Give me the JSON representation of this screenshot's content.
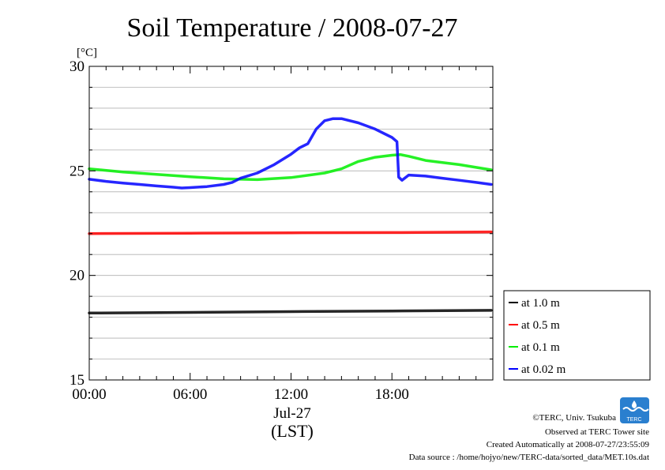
{
  "chart_data": {
    "type": "line",
    "title": "Soil Temperature / 2008-07-27",
    "yunit": "[°C]",
    "xlim": [
      0,
      24
    ],
    "ylim": [
      15,
      30
    ],
    "yticks": [
      15,
      20,
      25,
      30
    ],
    "xticks": [
      {
        "value": 0,
        "label": "00:00"
      },
      {
        "value": 6,
        "label": "06:00"
      },
      {
        "value": 12,
        "label": "12:00"
      },
      {
        "value": 18,
        "label": "18:00"
      }
    ],
    "date_label": "Jul-27",
    "xlabel": "(LST)",
    "grid": "horizontal",
    "legend_position": "right",
    "series": [
      {
        "name": "at 1.0 m",
        "color": "#000000",
        "x": [
          0,
          6,
          12,
          18,
          23.9
        ],
        "y": [
          18.2,
          18.23,
          18.27,
          18.3,
          18.33
        ]
      },
      {
        "name": "at 0.5 m",
        "color": "#ff0000",
        "x": [
          0,
          6,
          12,
          18,
          23.9
        ],
        "y": [
          22.0,
          22.02,
          22.04,
          22.05,
          22.08
        ]
      },
      {
        "name": "at 0.1 m",
        "color": "#00ee00",
        "x": [
          0,
          2,
          4,
          6,
          8,
          10,
          12,
          14,
          15,
          16,
          17,
          18,
          18.5,
          19,
          20,
          22,
          23.9
        ],
        "y": [
          25.1,
          24.95,
          24.83,
          24.72,
          24.62,
          24.58,
          24.68,
          24.9,
          25.1,
          25.45,
          25.65,
          25.75,
          25.78,
          25.7,
          25.5,
          25.3,
          25.05
        ]
      },
      {
        "name": "at 0.02 m",
        "color": "#0000ff",
        "x": [
          0,
          1,
          2,
          3,
          4,
          5,
          5.5,
          6,
          7,
          8,
          8.5,
          9,
          10,
          11,
          12,
          12.5,
          13,
          13.5,
          14,
          14.5,
          15,
          16,
          17,
          18,
          18.3,
          18.4,
          18.6,
          19,
          20,
          21,
          22,
          23,
          23.9
        ],
        "y": [
          24.6,
          24.5,
          24.42,
          24.35,
          24.28,
          24.22,
          24.18,
          24.2,
          24.25,
          24.35,
          24.45,
          24.65,
          24.9,
          25.3,
          25.8,
          26.1,
          26.3,
          27.0,
          27.4,
          27.5,
          27.5,
          27.3,
          27.0,
          26.6,
          26.4,
          24.7,
          24.55,
          24.8,
          24.75,
          24.65,
          24.55,
          24.45,
          24.35
        ]
      }
    ]
  },
  "credits": {
    "copyright": "©TERC, Univ. Tsukuba",
    "observed": "Observed at TERC Tower site",
    "created": "Created Automatically at 2008-07-27/23:55:09",
    "source": "Data source : /home/hojyo/new/TERC-data/sorted_data/MET.10s.dat",
    "logo_text": "TERC"
  }
}
